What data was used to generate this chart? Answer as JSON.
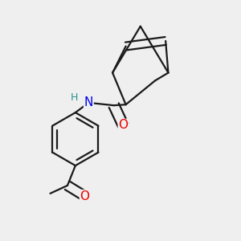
{
  "bg_color": "#efefef",
  "bond_color": "#1a1a1a",
  "bond_width": 1.6,
  "atom_colors": {
    "N": "#0000ee",
    "O": "#ee0000",
    "H": "#2a9090"
  },
  "font_size_atom": 11,
  "font_size_H": 9,
  "xlim": [
    0.05,
    0.95
  ],
  "ylim": [
    0.05,
    0.95
  ]
}
